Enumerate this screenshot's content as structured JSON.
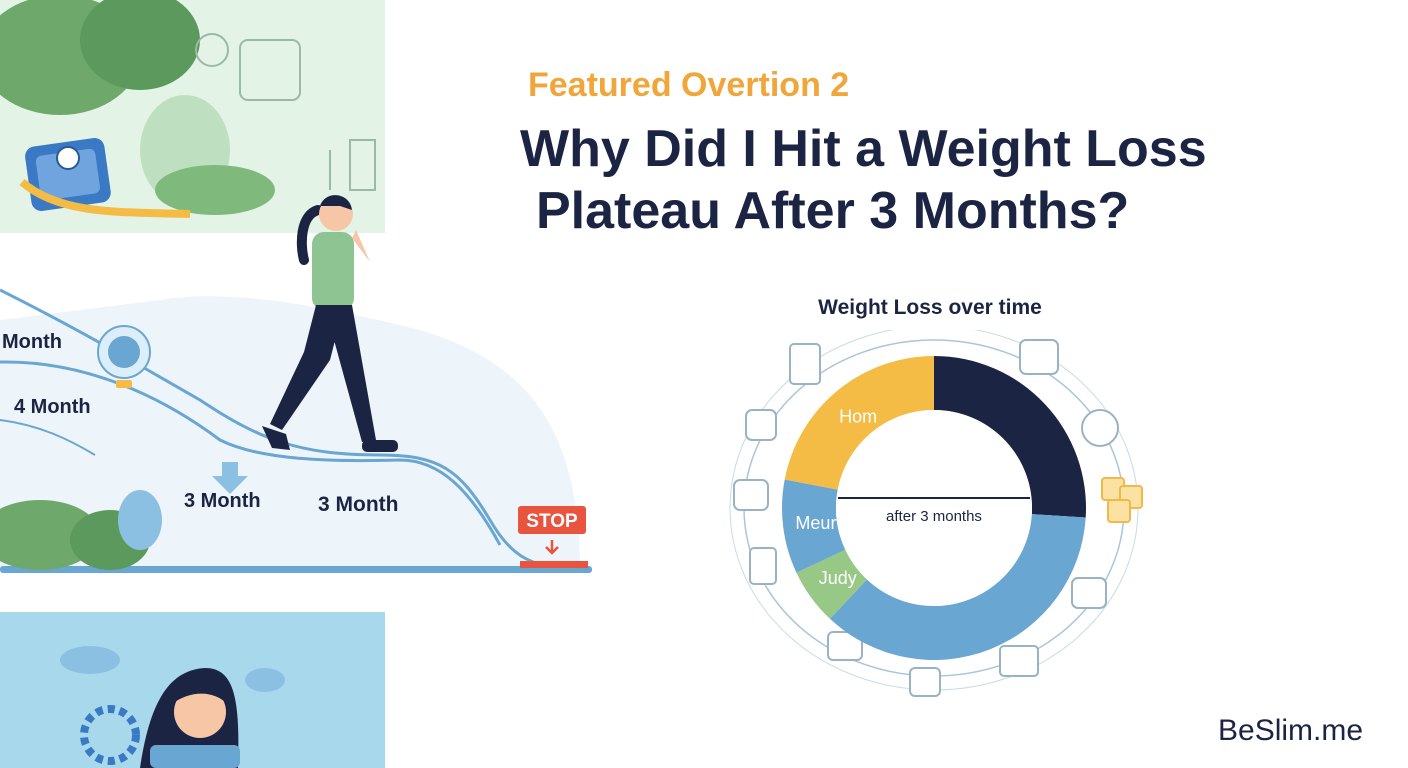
{
  "header": {
    "eyebrow": "Featured Overtion 2",
    "headline_line1": "Why Did I Hit a Weight Loss",
    "headline_line2": "Plateau After 3 Months?"
  },
  "illustration": {
    "timeline_labels": [
      "Month",
      "4 Month",
      "3 Month",
      "3 Month"
    ],
    "stop_sign": "STOP"
  },
  "chart_data": {
    "type": "pie",
    "title": "Weight Loss over time",
    "center_label": "after 3 months",
    "slices": [
      {
        "label": "",
        "value": 26,
        "color": "#1c2444"
      },
      {
        "label": "",
        "value": 36,
        "color": "#6aa6d2"
      },
      {
        "label": "Judy",
        "value": 6,
        "color": "#98c886"
      },
      {
        "label": "Meur",
        "value": 10,
        "color": "#6aa6d2"
      },
      {
        "label": "Hom",
        "value": 22,
        "color": "#f4bc45"
      }
    ]
  },
  "brand": {
    "name": "BeSlim",
    "suffix": ".me"
  },
  "colors": {
    "navy": "#1c2444",
    "orange": "#f0a63a",
    "blue": "#6aa6d2",
    "green": "#98c886",
    "yellow": "#f4bc45"
  }
}
